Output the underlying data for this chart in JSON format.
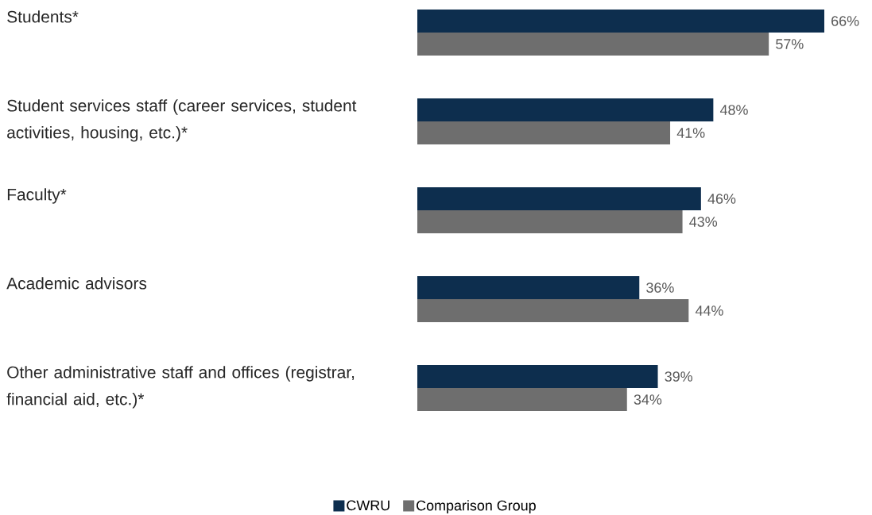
{
  "chart_data": {
    "type": "bar",
    "orientation": "horizontal",
    "categories": [
      "Students*",
      "Student services staff (career services, student activities, housing, etc.)*",
      "Faculty*",
      "Academic advisors",
      "Other administrative staff and offices (registrar, financial aid, etc.)*"
    ],
    "series": [
      {
        "name": "CWRU",
        "color": "#0d2e4e",
        "values": [
          66,
          48,
          46,
          36,
          39
        ],
        "value_labels": [
          "66%",
          "48%",
          "46%",
          "36%",
          "39%"
        ]
      },
      {
        "name": "Comparison Group",
        "color": "#6e6e6e",
        "values": [
          57,
          41,
          43,
          44,
          34
        ],
        "value_labels": [
          "57%",
          "41%",
          "43%",
          "44%",
          "34%"
        ]
      }
    ],
    "legend": "bottom"
  }
}
